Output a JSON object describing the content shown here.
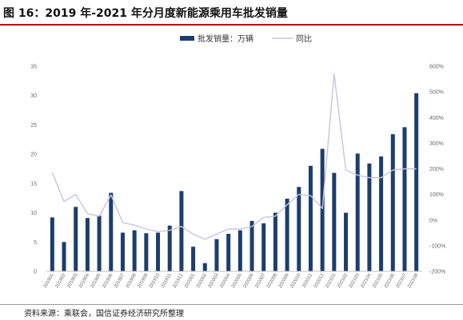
{
  "figure": {
    "title": "图 16：2019 年-2021 年分月度新能源乘用车批发销量",
    "source": "资料来源：乘联会，国信证券经济研究所整理"
  },
  "colors": {
    "bar": "#1c3e6e",
    "line": "#c9c3e2",
    "title_rule": "#b0121b"
  },
  "chart_data": {
    "type": "bar",
    "categories": [
      "201901",
      "201902",
      "201903",
      "201904",
      "201905",
      "201906",
      "201907",
      "201908",
      "201909",
      "201910",
      "201911",
      "201912",
      "202001",
      "202002",
      "202003",
      "202004",
      "202005",
      "202006",
      "202007",
      "202008",
      "202009",
      "202010",
      "202011",
      "202012",
      "202101",
      "202102",
      "202103",
      "202104",
      "202105",
      "202106",
      "202107",
      "202108"
    ],
    "series": [
      {
        "name": "批发销量：万辆",
        "type": "bar",
        "axis": "left",
        "values": [
          9.2,
          5.0,
          11.0,
          9.1,
          9.5,
          13.4,
          6.6,
          7.0,
          6.5,
          6.6,
          7.8,
          13.7,
          4.2,
          1.4,
          5.5,
          6.4,
          7.0,
          8.6,
          8.2,
          10.0,
          12.4,
          14.4,
          18.0,
          20.9,
          16.8,
          10.0,
          20.1,
          18.4,
          19.6,
          23.4,
          24.6,
          30.4
        ]
      },
      {
        "name": "同比",
        "type": "line",
        "axis": "right",
        "values": [
          186,
          72,
          100,
          25,
          15,
          98,
          -10,
          -20,
          -35,
          -45,
          -40,
          -25,
          -55,
          -75,
          -55,
          -35,
          -35,
          -25,
          10,
          15,
          60,
          100,
          95,
          45,
          570,
          195,
          175,
          165,
          165,
          195,
          200,
          200
        ]
      }
    ],
    "y_left": {
      "min": 0,
      "max": 35,
      "ticks": [
        0,
        5,
        10,
        15,
        20,
        25,
        30,
        35
      ]
    },
    "y_right": {
      "min": -200,
      "max": 600,
      "ticks": [
        -200,
        -100,
        0,
        100,
        200,
        300,
        400,
        500,
        600
      ],
      "tick_suffix": "%"
    },
    "legend_position": "top-center",
    "grid": false
  }
}
